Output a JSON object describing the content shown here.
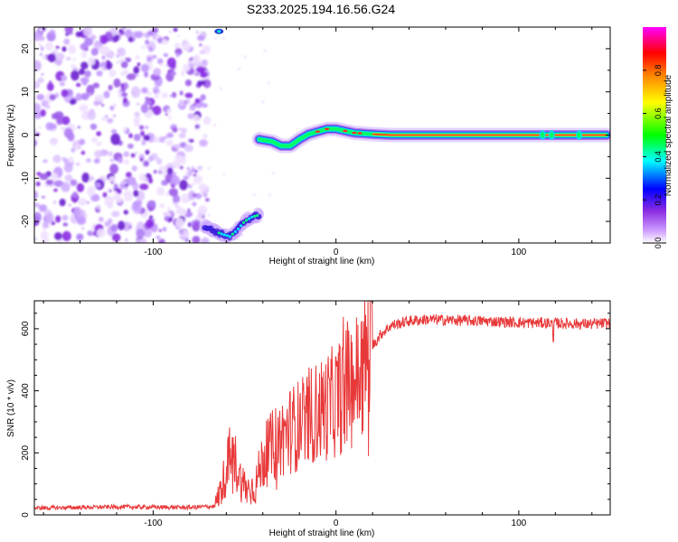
{
  "title": "S233.2025.194.16.56.G24",
  "chart_data": [
    {
      "type": "heatmap",
      "xlabel": "Height of straight line (km)",
      "ylabel": "Frequency (Hz)",
      "xlim": [
        -165,
        150
      ],
      "ylim": [
        -25,
        25
      ],
      "xticks": [
        -100,
        0,
        100
      ],
      "yticks": [
        -20,
        -10,
        0,
        10,
        20
      ],
      "colorbar": {
        "label": "Normalized spectral amplitude",
        "range": [
          0,
          1
        ],
        "ticks": [
          "0.0",
          "0.2",
          "0.4",
          "0.6",
          "0.8"
        ],
        "colormap": [
          "#ffffff",
          "#8a2be2",
          "#0000ff",
          "#00ffff",
          "#00ff00",
          "#ffff00",
          "#ff8000",
          "#ff0000",
          "#ff00ff"
        ]
      },
      "ridge": {
        "x": [
          -42,
          -35,
          -30,
          -25,
          -20,
          -15,
          -10,
          -5,
          0,
          10,
          20,
          30,
          50,
          75,
          100,
          115,
          125,
          140,
          148
        ],
        "freq": [
          -1,
          -1.5,
          -2.5,
          -2.5,
          -1,
          0.2,
          0.8,
          1.4,
          1.4,
          0.5,
          0.2,
          0,
          0,
          0,
          0,
          0,
          0,
          0,
          0
        ]
      },
      "secondary_track": {
        "x": [
          -72,
          -68,
          -62,
          -58,
          -54,
          -50,
          -46,
          -42
        ],
        "freq": [
          -21,
          -22,
          -23,
          -23.5,
          -22,
          -20,
          -19,
          -18.5
        ]
      },
      "noise_region_x": [
        -165,
        -70
      ],
      "grid": false
    },
    {
      "type": "line",
      "xlabel": "Height of straight line (km)",
      "ylabel": "SNR (10 * v/v)",
      "xlim": [
        -165,
        150
      ],
      "ylim": [
        0,
        690
      ],
      "xticks": [
        -100,
        0,
        100
      ],
      "yticks": [
        0,
        200,
        400,
        600
      ],
      "color": "#e8393a",
      "series": [
        {
          "x": [
            -165,
            -140,
            -120,
            -100,
            -80,
            -66,
            -62,
            -58,
            -55,
            -52,
            -48,
            -44,
            -40,
            -35,
            -30,
            -25,
            -20,
            -15,
            -10,
            -5,
            0,
            5,
            10,
            15,
            20,
            25,
            30,
            40,
            50,
            60,
            80,
            100,
            120,
            140,
            150
          ],
          "y": [
            22,
            24,
            26,
            25,
            24,
            28,
            100,
            190,
            170,
            110,
            80,
            95,
            180,
            220,
            250,
            275,
            290,
            315,
            330,
            350,
            370,
            400,
            430,
            475,
            545,
            585,
            610,
            625,
            630,
            628,
            625,
            620,
            618,
            615,
            618
          ]
        }
      ],
      "grid": false
    }
  ]
}
